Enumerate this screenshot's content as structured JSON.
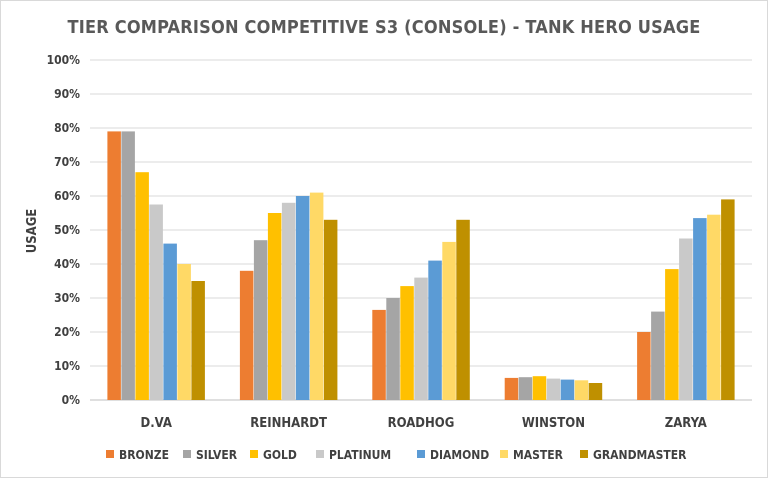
{
  "chart_data": {
    "type": "bar",
    "title": "TIER COMPARISON COMPETITIVE S3 (CONSOLE) - TANK HERO USAGE",
    "xlabel": "",
    "ylabel": "USAGE",
    "ylim": [
      0,
      100
    ],
    "yticks": [
      "0%",
      "10%",
      "20%",
      "30%",
      "40%",
      "50%",
      "60%",
      "70%",
      "80%",
      "90%",
      "100%"
    ],
    "grid": true,
    "legend_position": "bottom",
    "categories": [
      "D.VA",
      "REINHARDT",
      "ROADHOG",
      "WINSTON",
      "ZARYA"
    ],
    "series": [
      {
        "name": "BRONZE",
        "color": "#ED7D31",
        "values": [
          79,
          38,
          26.5,
          6.5,
          20
        ]
      },
      {
        "name": "SILVER",
        "color": "#A5A5A5",
        "values": [
          79,
          47,
          30,
          6.7,
          26
        ]
      },
      {
        "name": "GOLD",
        "color": "#FFC000",
        "values": [
          67,
          55,
          33.5,
          7,
          38.5
        ]
      },
      {
        "name": "PLATINUM",
        "color": "#C9C9C9",
        "values": [
          57.5,
          58,
          36,
          6.3,
          47.5
        ]
      },
      {
        "name": "DIAMOND",
        "color": "#5B9BD5",
        "values": [
          46,
          60,
          41,
          6,
          53.5
        ]
      },
      {
        "name": "MASTER",
        "color": "#FFD966",
        "values": [
          40,
          61,
          46.5,
          5.8,
          54.5
        ]
      },
      {
        "name": "GRANDMASTER",
        "color": "#BF9000",
        "values": [
          35,
          53,
          53,
          5,
          59
        ]
      }
    ]
  }
}
